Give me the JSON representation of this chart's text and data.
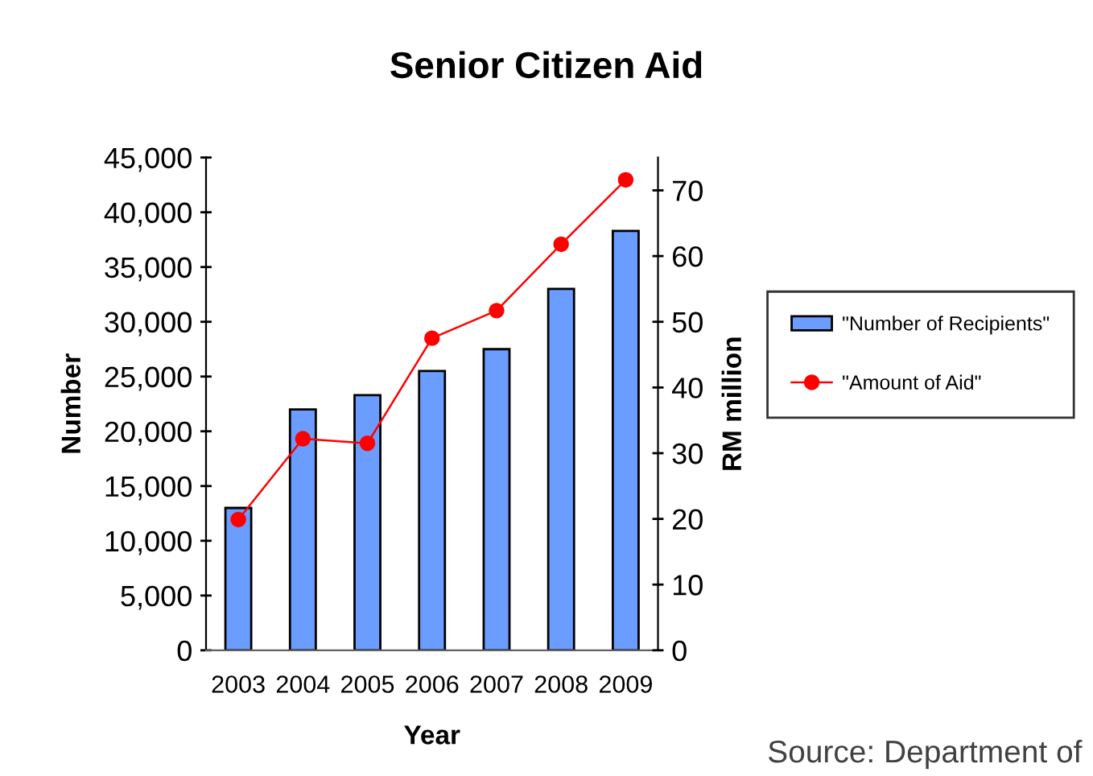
{
  "chart_data": {
    "type": "bar",
    "title": "Senior Citizen Aid",
    "xlabel": "Year",
    "ylabel": "Number",
    "y2label": "RM million",
    "categories": [
      "2003",
      "2004",
      "2005",
      "2006",
      "2007",
      "2008",
      "2009"
    ],
    "series": [
      {
        "name": "\"Number of Recipients\"",
        "color": "#6b9cff",
        "values": [
          13000,
          22000,
          23300,
          25500,
          27500,
          33000,
          38300
        ]
      },
      {
        "name": "\"Amount of Aid\"",
        "type": "line",
        "axis": "y2",
        "marker": "circle",
        "color": "#ff0000",
        "values": [
          19.9,
          32.2,
          31.5,
          47.5,
          51.7,
          61.8,
          71.6
        ]
      }
    ],
    "ylim": [
      0,
      45000
    ],
    "yticks": [
      {
        "value": 0,
        "label": "0"
      },
      {
        "value": 5000,
        "label": "5,000"
      },
      {
        "value": 10000,
        "label": "10,000"
      },
      {
        "value": 15000,
        "label": "15,000"
      },
      {
        "value": 20000,
        "label": "20,000"
      },
      {
        "value": 25000,
        "label": "25,000"
      },
      {
        "value": 30000,
        "label": "30,000"
      },
      {
        "value": 35000,
        "label": "35,000"
      },
      {
        "value": 40000,
        "label": "40,000"
      },
      {
        "value": 45000,
        "label": "45,000"
      }
    ],
    "y2lim": [
      0,
      75
    ],
    "y2ticks": [
      0,
      10,
      20,
      30,
      40,
      50,
      60,
      70
    ],
    "legend": "right",
    "annotations": [
      "Source: Department of"
    ]
  }
}
